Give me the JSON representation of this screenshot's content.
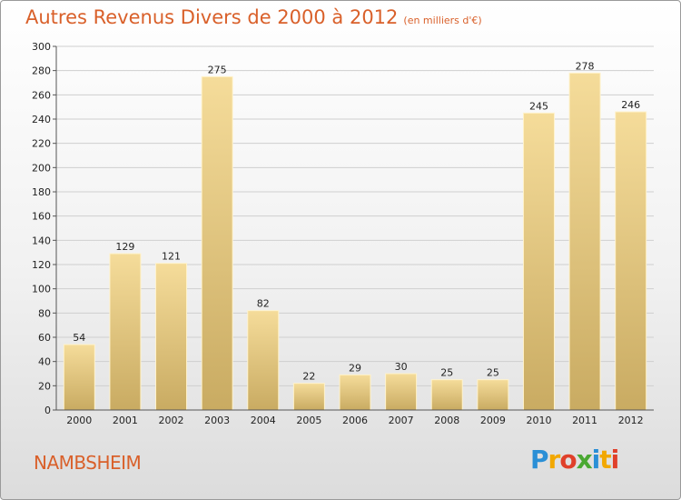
{
  "title": {
    "main": "Autres Revenus Divers de 2000 à 2012",
    "unit": "(en milliers d'€)"
  },
  "commune": "NAMBSHEIM",
  "logo": {
    "letters": [
      "P",
      "r",
      "o",
      "x",
      "i",
      "t",
      "i"
    ],
    "colors": [
      "#2a8fd6",
      "#f2a800",
      "#e0402a",
      "#4aa832",
      "#2a8fd6",
      "#f2a800",
      "#e0402a"
    ]
  },
  "chart_data": {
    "type": "bar",
    "title": "Autres Revenus Divers de 2000 à 2012",
    "subtitle": "(en milliers d'€)",
    "categories": [
      "2000",
      "2001",
      "2002",
      "2003",
      "2004",
      "2005",
      "2006",
      "2007",
      "2008",
      "2009",
      "2010",
      "2011",
      "2012"
    ],
    "values": [
      54,
      129,
      121,
      275,
      82,
      22,
      29,
      30,
      25,
      25,
      245,
      278,
      246
    ],
    "ylim": [
      0,
      300
    ],
    "yticks": [
      0,
      20,
      40,
      60,
      80,
      100,
      120,
      140,
      160,
      180,
      200,
      220,
      240,
      260,
      280,
      300
    ],
    "grid": true,
    "bar_color_light": "#f5dc9a",
    "bar_color_dark": "#c9ab62"
  }
}
